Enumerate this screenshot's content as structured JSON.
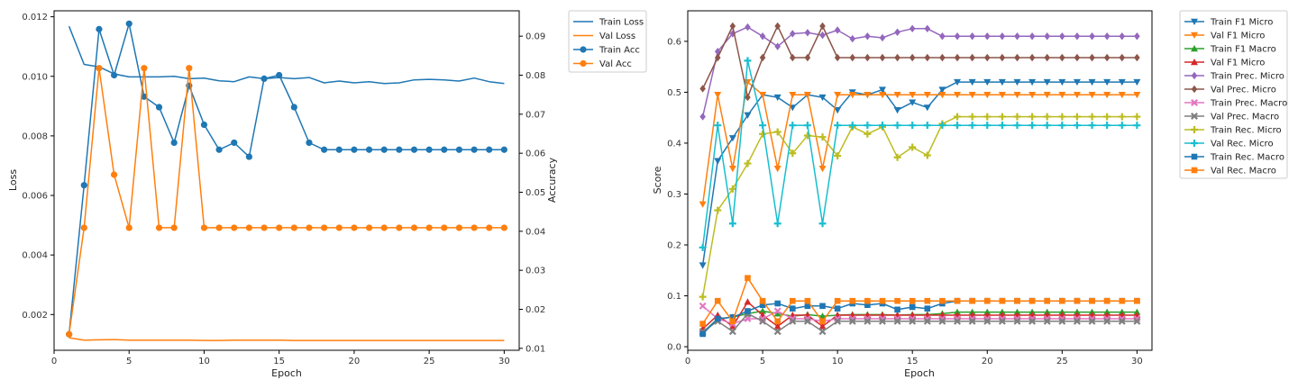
{
  "chart_data": [
    {
      "type": "line",
      "xlabel": "Epoch",
      "ylabel": "Loss",
      "y2label": "Accuracy",
      "xlim": [
        0,
        31
      ],
      "ylim": [
        0.0008,
        0.0122
      ],
      "y2lim": [
        0.0095,
        0.0965
      ],
      "xticks": [
        "0",
        "5",
        "10",
        "15",
        "20",
        "25",
        "30"
      ],
      "yticks": [
        "0.002",
        "0.004",
        "0.006",
        "0.008",
        "0.010",
        "0.012"
      ],
      "y2ticks": [
        "0.01",
        "0.02",
        "0.03",
        "0.04",
        "0.05",
        "0.06",
        "0.07",
        "0.08",
        "0.09"
      ],
      "legend_position": "outside-top-right",
      "x": [
        1,
        2,
        3,
        4,
        5,
        6,
        7,
        8,
        9,
        10,
        11,
        12,
        13,
        14,
        15,
        16,
        17,
        18,
        19,
        20,
        21,
        22,
        23,
        24,
        25,
        26,
        27,
        28,
        29,
        30
      ],
      "series": [
        {
          "name": "Train Loss",
          "axis": "left",
          "color": "#1f77b4",
          "marker": "none",
          "values": [
            0.01168,
            0.0104,
            0.01032,
            0.01008,
            0.00998,
            0.00998,
            0.00998,
            0.01,
            0.00992,
            0.00994,
            0.00985,
            0.00982,
            0.00998,
            0.00992,
            0.00996,
            0.00992,
            0.00996,
            0.00978,
            0.00984,
            0.00978,
            0.00982,
            0.00976,
            0.00978,
            0.00988,
            0.0099,
            0.00988,
            0.00984,
            0.00994,
            0.00982,
            0.00976
          ]
        },
        {
          "name": "Val Loss",
          "axis": "left",
          "color": "#ff7f0e",
          "marker": "none",
          "values": [
            0.00122,
            0.00114,
            0.00115,
            0.00116,
            0.00114,
            0.00114,
            0.00114,
            0.00114,
            0.00114,
            0.00113,
            0.00113,
            0.00114,
            0.00114,
            0.00114,
            0.00114,
            0.00113,
            0.00113,
            0.00113,
            0.00113,
            0.00113,
            0.00113,
            0.00113,
            0.00113,
            0.00113,
            0.00113,
            0.00113,
            0.00113,
            0.00113,
            0.00113,
            0.00113
          ]
        },
        {
          "name": "Train Acc",
          "axis": "right",
          "color": "#1f77b4",
          "marker": "circle",
          "values": [
            0.0136,
            0.0518,
            0.0918,
            0.08,
            0.0932,
            0.0745,
            0.0718,
            0.0627,
            0.0773,
            0.0673,
            0.0609,
            0.0627,
            0.0591,
            0.0791,
            0.08,
            0.0718,
            0.0627,
            0.0609,
            0.0609,
            0.0609,
            0.0609,
            0.0609,
            0.0609,
            0.0609,
            0.0609,
            0.0609,
            0.0609,
            0.0609,
            0.0609,
            0.0609
          ]
        },
        {
          "name": "Val Acc",
          "axis": "right",
          "color": "#ff7f0e",
          "marker": "circle",
          "values": [
            0.0136,
            0.0409,
            0.0818,
            0.0545,
            0.0409,
            0.0818,
            0.0409,
            0.0409,
            0.0818,
            0.0409,
            0.0409,
            0.0409,
            0.0409,
            0.0409,
            0.0409,
            0.0409,
            0.0409,
            0.0409,
            0.0409,
            0.0409,
            0.0409,
            0.0409,
            0.0409,
            0.0409,
            0.0409,
            0.0409,
            0.0409,
            0.0409,
            0.0409,
            0.0409
          ]
        }
      ]
    },
    {
      "type": "line",
      "xlabel": "Epoch",
      "ylabel": "Score",
      "xlim": [
        0,
        31
      ],
      "ylim": [
        -0.007,
        0.66
      ],
      "xticks": [
        "0",
        "5",
        "10",
        "15",
        "20",
        "25",
        "30"
      ],
      "yticks": [
        "0.0",
        "0.1",
        "0.2",
        "0.3",
        "0.4",
        "0.5",
        "0.6"
      ],
      "legend_position": "outside-top-right",
      "x": [
        1,
        2,
        3,
        4,
        5,
        6,
        7,
        8,
        9,
        10,
        11,
        12,
        13,
        14,
        15,
        16,
        17,
        18,
        19,
        20,
        21,
        22,
        23,
        24,
        25,
        26,
        27,
        28,
        29,
        30
      ],
      "series": [
        {
          "name": "Train F1 Micro",
          "color": "#1f77b4",
          "marker": "tri-down",
          "values": [
            0.16,
            0.365,
            0.41,
            0.455,
            0.495,
            0.49,
            0.47,
            0.495,
            0.49,
            0.465,
            0.5,
            0.495,
            0.505,
            0.465,
            0.48,
            0.47,
            0.505,
            0.52,
            0.52,
            0.52,
            0.52,
            0.52,
            0.52,
            0.52,
            0.52,
            0.52,
            0.52,
            0.52,
            0.52,
            0.52
          ]
        },
        {
          "name": "Val F1 Micro",
          "color": "#ff7f0e",
          "marker": "tri-down",
          "values": [
            0.28,
            0.495,
            0.35,
            0.52,
            0.495,
            0.35,
            0.495,
            0.495,
            0.35,
            0.495,
            0.495,
            0.495,
            0.495,
            0.495,
            0.495,
            0.495,
            0.495,
            0.495,
            0.495,
            0.495,
            0.495,
            0.495,
            0.495,
            0.495,
            0.495,
            0.495,
            0.495,
            0.495,
            0.495,
            0.495
          ]
        },
        {
          "name": "Train F1 Macro",
          "color": "#2ca02c",
          "marker": "tri-up",
          "values": [
            0.028,
            0.055,
            0.058,
            0.065,
            0.07,
            0.065,
            0.06,
            0.063,
            0.06,
            0.062,
            0.063,
            0.063,
            0.063,
            0.062,
            0.063,
            0.063,
            0.065,
            0.068,
            0.068,
            0.068,
            0.068,
            0.068,
            0.068,
            0.068,
            0.068,
            0.068,
            0.068,
            0.068,
            0.068,
            0.068
          ]
        },
        {
          "name": "Val F1 Micro",
          "color": "#d62728",
          "marker": "tri-up",
          "values": [
            0.035,
            0.062,
            0.04,
            0.088,
            0.062,
            0.04,
            0.062,
            0.062,
            0.04,
            0.062,
            0.062,
            0.062,
            0.062,
            0.062,
            0.062,
            0.062,
            0.062,
            0.062,
            0.062,
            0.062,
            0.062,
            0.062,
            0.062,
            0.062,
            0.062,
            0.062,
            0.062,
            0.062,
            0.062,
            0.062
          ]
        },
        {
          "name": "Train Prec. Micro",
          "color": "#9467bd",
          "marker": "diamond",
          "values": [
            0.452,
            0.58,
            0.615,
            0.628,
            0.61,
            0.59,
            0.615,
            0.617,
            0.612,
            0.622,
            0.605,
            0.61,
            0.607,
            0.618,
            0.625,
            0.625,
            0.61,
            0.61,
            0.61,
            0.61,
            0.61,
            0.61,
            0.61,
            0.61,
            0.61,
            0.61,
            0.61,
            0.61,
            0.61,
            0.61
          ]
        },
        {
          "name": "Val Prec. Micro",
          "color": "#8c564b",
          "marker": "diamond",
          "values": [
            0.507,
            0.568,
            0.63,
            0.49,
            0.568,
            0.63,
            0.568,
            0.568,
            0.63,
            0.568,
            0.568,
            0.568,
            0.568,
            0.568,
            0.568,
            0.568,
            0.568,
            0.568,
            0.568,
            0.568,
            0.568,
            0.568,
            0.568,
            0.568,
            0.568,
            0.568,
            0.568,
            0.568,
            0.568,
            0.568
          ]
        },
        {
          "name": "Train Prec. Macro",
          "color": "#e377c2",
          "marker": "x",
          "values": [
            0.08,
            0.055,
            0.045,
            0.055,
            0.055,
            0.07,
            0.055,
            0.055,
            0.05,
            0.055,
            0.055,
            0.055,
            0.055,
            0.055,
            0.055,
            0.055,
            0.055,
            0.055,
            0.055,
            0.055,
            0.055,
            0.055,
            0.055,
            0.055,
            0.055,
            0.055,
            0.055,
            0.055,
            0.055,
            0.055
          ]
        },
        {
          "name": "Val Prec. Macro",
          "color": "#7f7f7f",
          "marker": "x",
          "values": [
            0.03,
            0.05,
            0.03,
            0.065,
            0.05,
            0.03,
            0.05,
            0.05,
            0.03,
            0.05,
            0.05,
            0.05,
            0.05,
            0.05,
            0.05,
            0.05,
            0.05,
            0.05,
            0.05,
            0.05,
            0.05,
            0.05,
            0.05,
            0.05,
            0.05,
            0.05,
            0.05,
            0.05,
            0.05,
            0.05
          ]
        },
        {
          "name": "Train Rec. Micro",
          "color": "#bcbd22",
          "marker": "plus",
          "values": [
            0.098,
            0.268,
            0.31,
            0.36,
            0.418,
            0.422,
            0.38,
            0.415,
            0.412,
            0.375,
            0.432,
            0.418,
            0.432,
            0.372,
            0.392,
            0.376,
            0.438,
            0.452,
            0.452,
            0.452,
            0.452,
            0.452,
            0.452,
            0.452,
            0.452,
            0.452,
            0.452,
            0.452,
            0.452,
            0.452
          ]
        },
        {
          "name": "Val Rec. Micro",
          "color": "#17becf",
          "marker": "plus",
          "values": [
            0.195,
            0.435,
            0.242,
            0.562,
            0.435,
            0.242,
            0.435,
            0.435,
            0.242,
            0.435,
            0.435,
            0.435,
            0.435,
            0.435,
            0.435,
            0.435,
            0.435,
            0.435,
            0.435,
            0.435,
            0.435,
            0.435,
            0.435,
            0.435,
            0.435,
            0.435,
            0.435,
            0.435,
            0.435,
            0.435
          ]
        },
        {
          "name": "Train Rec. Macro",
          "color": "#1f77b4",
          "marker": "square",
          "values": [
            0.025,
            0.055,
            0.058,
            0.07,
            0.082,
            0.085,
            0.075,
            0.08,
            0.08,
            0.075,
            0.085,
            0.082,
            0.085,
            0.073,
            0.078,
            0.075,
            0.085,
            0.09,
            0.09,
            0.09,
            0.09,
            0.09,
            0.09,
            0.09,
            0.09,
            0.09,
            0.09,
            0.09,
            0.09,
            0.09
          ]
        },
        {
          "name": "Val Rec. Macro",
          "color": "#ff7f0e",
          "marker": "square",
          "values": [
            0.045,
            0.09,
            0.05,
            0.135,
            0.09,
            0.05,
            0.09,
            0.09,
            0.05,
            0.09,
            0.09,
            0.09,
            0.09,
            0.09,
            0.09,
            0.09,
            0.09,
            0.09,
            0.09,
            0.09,
            0.09,
            0.09,
            0.09,
            0.09,
            0.09,
            0.09,
            0.09,
            0.09,
            0.09,
            0.09
          ]
        }
      ]
    }
  ]
}
